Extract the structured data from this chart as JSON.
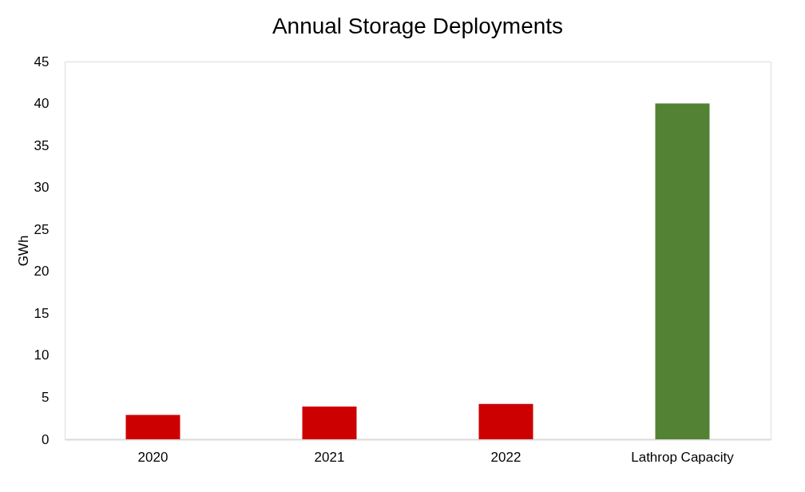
{
  "chart_data": {
    "type": "bar",
    "title": "Annual Storage Deployments",
    "ylabel": "GWh",
    "categories": [
      "2020",
      "2021",
      "2022",
      "Lathrop Capacity"
    ],
    "values": [
      2.9,
      3.9,
      4.2,
      40
    ],
    "colors": [
      "#cc0000",
      "#cc0000",
      "#cc0000",
      "#548235"
    ],
    "ylim": [
      0,
      45
    ],
    "yticks": [
      0,
      5,
      10,
      15,
      20,
      25,
      30,
      35,
      40,
      45
    ],
    "grid": false
  }
}
